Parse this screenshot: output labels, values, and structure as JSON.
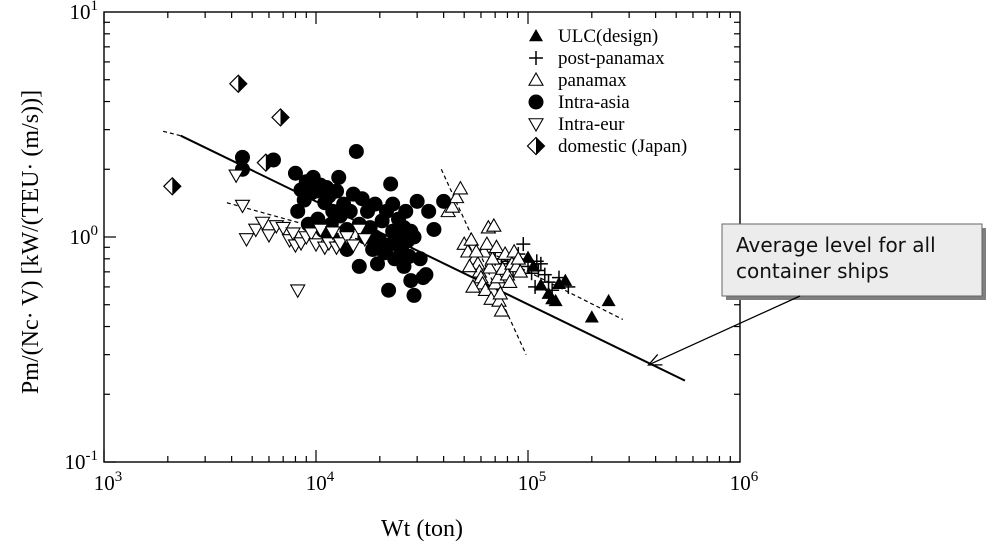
{
  "chart_data": {
    "type": "scatter",
    "xscale": "log",
    "yscale": "log",
    "xlim": [
      1000,
      1000000
    ],
    "ylim": [
      0.1,
      10
    ],
    "xlabel": "Wt  (ton)",
    "ylabel": "Pm/(Nc·  V)     [kW/(TEU·  (m/s))]",
    "x_ticks": [
      {
        "value": 1000,
        "base": "10",
        "exp": "3"
      },
      {
        "value": 10000,
        "base": "10",
        "exp": "4"
      },
      {
        "value": 100000,
        "base": "10",
        "exp": "5"
      },
      {
        "value": 1000000,
        "base": "10",
        "exp": "6"
      }
    ],
    "y_ticks": [
      {
        "value": 0.1,
        "base": "10",
        "exp": "-1"
      },
      {
        "value": 1,
        "base": "10",
        "exp": "0"
      },
      {
        "value": 10,
        "base": "10",
        "exp": "1"
      }
    ],
    "legend_position": "top-right",
    "series": [
      {
        "name": "ULC(design)",
        "marker": "triangle-filled",
        "points": [
          [
            100000,
            0.81
          ],
          [
            106000,
            0.74
          ],
          [
            115000,
            0.61
          ],
          [
            125000,
            0.56
          ],
          [
            130000,
            0.53
          ],
          [
            135000,
            0.52
          ],
          [
            140000,
            0.62
          ],
          [
            150000,
            0.64
          ],
          [
            200000,
            0.44
          ],
          [
            240000,
            0.52
          ]
        ]
      },
      {
        "name": "post-panamax",
        "marker": "plus",
        "points": [
          [
            70000,
            0.8
          ],
          [
            75000,
            0.76
          ],
          [
            80000,
            0.78
          ],
          [
            85000,
            0.72
          ],
          [
            90000,
            0.84
          ],
          [
            95000,
            0.93
          ],
          [
            100000,
            0.74
          ],
          [
            104000,
            0.69
          ],
          [
            108000,
            0.6
          ],
          [
            112000,
            0.71
          ],
          [
            115000,
            0.76
          ],
          [
            120000,
            0.68
          ],
          [
            125000,
            0.63
          ],
          [
            130000,
            0.58
          ],
          [
            140000,
            0.66
          ],
          [
            155000,
            0.6
          ],
          [
            88000,
            0.8
          ],
          [
            110000,
            0.78
          ]
        ]
      },
      {
        "name": "panamax",
        "marker": "triangle-open",
        "points": [
          [
            42000,
            1.3
          ],
          [
            44000,
            1.36
          ],
          [
            46000,
            1.5
          ],
          [
            48000,
            1.64
          ],
          [
            50000,
            0.93
          ],
          [
            52000,
            0.86
          ],
          [
            54000,
            0.97
          ],
          [
            56000,
            0.8
          ],
          [
            58000,
            0.76
          ],
          [
            59000,
            0.7
          ],
          [
            60000,
            0.66
          ],
          [
            61000,
            0.62
          ],
          [
            62000,
            0.86
          ],
          [
            63000,
            0.58
          ],
          [
            64000,
            0.93
          ],
          [
            65000,
            1.1
          ],
          [
            66000,
            0.73
          ],
          [
            67000,
            0.53
          ],
          [
            68000,
            0.8
          ],
          [
            69000,
            1.12
          ],
          [
            70000,
            0.62
          ],
          [
            71000,
            0.9
          ],
          [
            72000,
            0.66
          ],
          [
            73000,
            0.52
          ],
          [
            74000,
            0.56
          ],
          [
            75000,
            0.47
          ],
          [
            76000,
            0.72
          ],
          [
            78000,
            0.84
          ],
          [
            80000,
            0.68
          ],
          [
            82000,
            0.63
          ],
          [
            84000,
            0.76
          ],
          [
            86000,
            0.86
          ],
          [
            88000,
            0.74
          ],
          [
            90000,
            0.8
          ],
          [
            92000,
            0.7
          ],
          [
            55000,
            0.6
          ],
          [
            53000,
            0.74
          ],
          [
            57000,
            0.86
          ]
        ]
      },
      {
        "name": "Intra-asia",
        "marker": "circle-filled",
        "points": [
          [
            4500,
            2.26
          ],
          [
            4500,
            2.0
          ],
          [
            6300,
            2.2
          ],
          [
            8000,
            1.92
          ],
          [
            8200,
            1.3
          ],
          [
            8500,
            1.62
          ],
          [
            8800,
            1.46
          ],
          [
            9000,
            1.76
          ],
          [
            9200,
            1.14
          ],
          [
            9500,
            1.57
          ],
          [
            9700,
            1.84
          ],
          [
            10000,
            1.6
          ],
          [
            10200,
            1.2
          ],
          [
            10500,
            1.7
          ],
          [
            10800,
            1.07
          ],
          [
            11000,
            1.42
          ],
          [
            11200,
            1.66
          ],
          [
            11500,
            1.52
          ],
          [
            11800,
            1.14
          ],
          [
            12000,
            1.3
          ],
          [
            12500,
            1.6
          ],
          [
            12800,
            1.84
          ],
          [
            13000,
            1.24
          ],
          [
            13500,
            1.4
          ],
          [
            14000,
            1.08
          ],
          [
            14500,
            1.3
          ],
          [
            15000,
            1.55
          ],
          [
            15500,
            2.4
          ],
          [
            16000,
            1.14
          ],
          [
            16500,
            1.48
          ],
          [
            17000,
            1.0
          ],
          [
            17500,
            1.3
          ],
          [
            18000,
            1.1
          ],
          [
            18500,
            0.88
          ],
          [
            19000,
            1.4
          ],
          [
            19500,
            0.76
          ],
          [
            20000,
            0.96
          ],
          [
            20500,
            1.18
          ],
          [
            21000,
            0.85
          ],
          [
            21500,
            1.3
          ],
          [
            22000,
            0.92
          ],
          [
            22500,
            1.72
          ],
          [
            23000,
            1.06
          ],
          [
            23500,
            0.8
          ],
          [
            24000,
            0.98
          ],
          [
            24500,
            1.2
          ],
          [
            25000,
            0.9
          ],
          [
            25500,
            0.86
          ],
          [
            26000,
            1.1
          ],
          [
            26500,
            1.3
          ],
          [
            27000,
            0.96
          ],
          [
            27500,
            0.82
          ],
          [
            28000,
            1.06
          ],
          [
            29000,
            1.0
          ],
          [
            30000,
            1.44
          ],
          [
            31000,
            0.8
          ],
          [
            32000,
            0.66
          ],
          [
            33000,
            0.68
          ],
          [
            34000,
            1.3
          ],
          [
            36000,
            1.08
          ],
          [
            40000,
            1.44
          ],
          [
            22000,
            0.58
          ],
          [
            29000,
            0.55
          ],
          [
            16000,
            0.74
          ],
          [
            14000,
            0.88
          ],
          [
            12000,
            0.98
          ],
          [
            19000,
            1.0
          ],
          [
            23000,
            1.4
          ],
          [
            26000,
            0.74
          ],
          [
            28000,
            0.64
          ]
        ]
      },
      {
        "name": "Intra-eur",
        "marker": "triangle-down-open",
        "points": [
          [
            4200,
            1.88
          ],
          [
            4500,
            1.38
          ],
          [
            4700,
            0.98
          ],
          [
            5200,
            1.08
          ],
          [
            5600,
            1.16
          ],
          [
            6000,
            1.02
          ],
          [
            6500,
            1.12
          ],
          [
            7000,
            1.1
          ],
          [
            7500,
            0.97
          ],
          [
            7800,
            1.04
          ],
          [
            8000,
            0.92
          ],
          [
            8200,
            0.58
          ],
          [
            8500,
            0.94
          ],
          [
            9000,
            1.0
          ],
          [
            9500,
            1.04
          ],
          [
            10000,
            0.93
          ],
          [
            10500,
            1.08
          ],
          [
            11000,
            0.9
          ],
          [
            11500,
            0.94
          ],
          [
            12000,
            1.05
          ],
          [
            12500,
            0.9
          ],
          [
            13000,
            0.94
          ],
          [
            14000,
            1.0
          ],
          [
            15000,
            0.92
          ],
          [
            16000,
            1.08
          ],
          [
            17000,
            0.98
          ]
        ]
      },
      {
        "name": "domestic (Japan)",
        "marker": "diamond-half",
        "points": [
          [
            2100,
            1.68
          ],
          [
            4300,
            4.8
          ],
          [
            5800,
            2.14
          ],
          [
            6800,
            3.4
          ]
        ]
      }
    ],
    "fit_lines": [
      {
        "name": "average",
        "style": "solid",
        "points": [
          [
            2300,
            2.82
          ],
          [
            550000,
            0.23
          ]
        ]
      },
      {
        "name": "average-ext",
        "style": "dashed",
        "points": [
          [
            1900,
            2.95
          ],
          [
            2300,
            2.82
          ]
        ]
      },
      {
        "name": "intra-eur-trend",
        "style": "dashed",
        "points": [
          [
            3800,
            1.42
          ],
          [
            17000,
            0.96
          ]
        ]
      },
      {
        "name": "panamax-trend",
        "style": "dashed",
        "points": [
          [
            39000,
            2.0
          ],
          [
            98000,
            0.3
          ]
        ]
      },
      {
        "name": "postpanamax-trend",
        "style": "dashed",
        "points": [
          [
            62000,
            0.88
          ],
          [
            280000,
            0.43
          ]
        ]
      }
    ],
    "annotation": {
      "text_lines": [
        "Average level for all",
        "container ships"
      ],
      "arrow_to": [
        370000,
        0.27
      ]
    }
  }
}
